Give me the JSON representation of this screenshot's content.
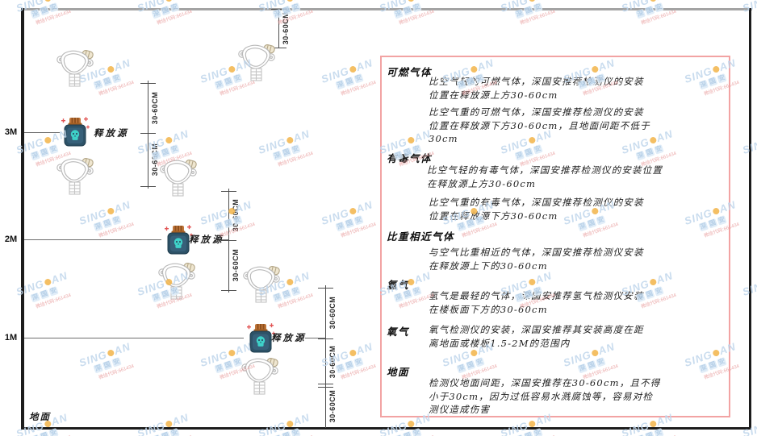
{
  "diagram": {
    "heights": [
      "3M",
      "2M",
      "1M"
    ],
    "dim_label": "30-60CM",
    "source_label": "释放源",
    "ground_label": "地面"
  },
  "panel": {
    "border_color": "#f2a3a3",
    "sections": [
      {
        "heading": "可燃气体",
        "paras": [
          "比空气轻的可燃气体，深国安推荐检测仪的安装\n位置在释放源上方30-60cm",
          "比空气重的可燃气体，深国安推荐检测仪的安装\n位置在释放源下方30-60cm，且地面间距不低于\n30cm"
        ]
      },
      {
        "heading": "有毒气体",
        "paras": [
          "比空气轻的有毒气体，深国安推荐检测仪的安装位置\n在释放源上方30-60cm",
          "比空气重的有毒气体，深国安推荐检测仪的安装\n位置在释放源下方30-60cm"
        ]
      },
      {
        "heading": "比重相近气体",
        "paras": [
          "与空气比重相近的气体，深国安推荐检测仪安装\n在释放源上下的30-60cm"
        ]
      },
      {
        "heading": "氢气",
        "paras": [
          "氢气是最轻的气体，深国安推荐氢气检测仪安装\n在楼板面下方的30-60cm"
        ]
      },
      {
        "heading": "氧气",
        "paras": [
          "氧气检测仪的安装，深国安推荐其安装高度在距\n离地面或楼板1.5-2M的范围内"
        ]
      },
      {
        "heading": "地面",
        "paras": [
          "检测仪地面间距，深国安推荐在30-60cm，且不得\n小于30cm，因为过低容易水溅腐蚀等，容易对检\n测仪造成伤害"
        ]
      }
    ]
  },
  "watermark": {
    "brand_left": "SING",
    "brand_right": "AN",
    "chars": [
      "深",
      "国",
      "安"
    ],
    "red_text": "微信代码:661434",
    "blue": "#c0d6ec",
    "orange": "#f3b54a"
  },
  "icon_colors": {
    "detector_stroke": "#b8b8b8",
    "source_body": "#2d5267",
    "source_cap": "#c0763a",
    "skull": "#3ed2c9",
    "sparkle": "#e25555"
  }
}
